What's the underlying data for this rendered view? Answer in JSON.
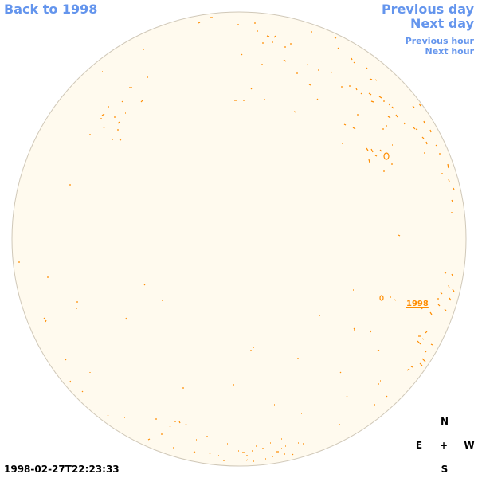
{
  "nav": {
    "back_label": "Back to 1998",
    "previous_day_label": "Previous day",
    "next_day_label": "Next day",
    "previous_hour_label": "Previous hour",
    "next_hour_label": "Next hour"
  },
  "compass": {
    "north": "N",
    "east": "E",
    "center": "+",
    "west": "W",
    "south": "S"
  },
  "timestamp": "1998-02-27T22:23:33",
  "region_label": "1998",
  "colors": {
    "disk_fill": "#fffaee",
    "disk_stroke": "#d0c8b8",
    "feature": "#ff8c00",
    "link": "#6495ed"
  }
}
